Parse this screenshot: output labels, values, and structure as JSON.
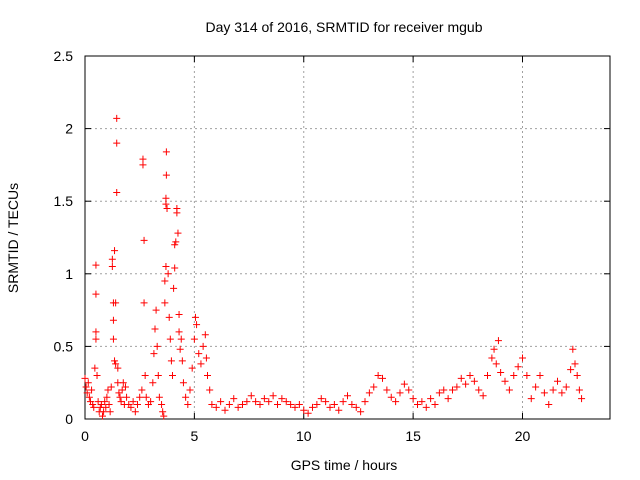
{
  "chart_data": {
    "type": "scatter",
    "title": "Day 314 of 2016, SRMTID for receiver mgub",
    "xlabel": "GPS time / hours",
    "ylabel": "SRMTID / TECUs",
    "xlim": [
      0,
      24
    ],
    "ylim": [
      0,
      2.5
    ],
    "x_ticks": [
      "0",
      "5",
      "10",
      "15",
      "20"
    ],
    "x_tick_values": [
      0,
      5,
      10,
      15,
      20
    ],
    "y_ticks": [
      "0",
      "0.5",
      "1",
      "1.5",
      "2",
      "2.5"
    ],
    "y_tick_values": [
      0,
      0.5,
      1,
      1.5,
      2,
      2.5
    ],
    "grid": true,
    "marker": "+",
    "colors": {
      "series": "#ff0000",
      "grid": "#a0a0a0",
      "axis": "#000000"
    },
    "series": [
      {
        "name": "SRMTID",
        "points": [
          [
            0.0,
            0.28
          ],
          [
            0.05,
            0.22
          ],
          [
            0.1,
            0.18
          ],
          [
            0.15,
            0.25
          ],
          [
            0.2,
            0.15
          ],
          [
            0.25,
            0.12
          ],
          [
            0.3,
            0.2
          ],
          [
            0.35,
            0.1
          ],
          [
            0.4,
            0.08
          ],
          [
            0.45,
            0.35
          ],
          [
            0.5,
            0.55
          ],
          [
            0.5,
            0.6
          ],
          [
            0.5,
            0.86
          ],
          [
            0.5,
            1.06
          ],
          [
            0.55,
            0.3
          ],
          [
            0.6,
            0.12
          ],
          [
            0.65,
            0.05
          ],
          [
            0.7,
            0.08
          ],
          [
            0.75,
            0.1
          ],
          [
            0.8,
            0.02
          ],
          [
            0.85,
            0.05
          ],
          [
            0.9,
            0.12
          ],
          [
            0.95,
            0.08
          ],
          [
            1.0,
            0.15
          ],
          [
            1.05,
            0.2
          ],
          [
            1.1,
            0.1
          ],
          [
            1.15,
            0.05
          ],
          [
            1.2,
            0.22
          ],
          [
            1.25,
            1.05
          ],
          [
            1.25,
            1.1
          ],
          [
            1.3,
            0.8
          ],
          [
            1.3,
            0.68
          ],
          [
            1.3,
            0.55
          ],
          [
            1.35,
            0.4
          ],
          [
            1.35,
            1.16
          ],
          [
            1.4,
            0.8
          ],
          [
            1.4,
            0.38
          ],
          [
            1.45,
            2.07
          ],
          [
            1.45,
            1.9
          ],
          [
            1.45,
            1.56
          ],
          [
            1.5,
            0.35
          ],
          [
            1.5,
            0.25
          ],
          [
            1.55,
            0.18
          ],
          [
            1.6,
            0.15
          ],
          [
            1.65,
            0.12
          ],
          [
            1.7,
            0.2
          ],
          [
            1.75,
            0.25
          ],
          [
            1.8,
            0.1
          ],
          [
            1.85,
            0.22
          ],
          [
            1.9,
            0.15
          ],
          [
            2.0,
            0.1
          ],
          [
            2.1,
            0.08
          ],
          [
            2.2,
            0.12
          ],
          [
            2.3,
            0.05
          ],
          [
            2.4,
            0.1
          ],
          [
            2.5,
            0.15
          ],
          [
            2.6,
            0.2
          ],
          [
            2.65,
            1.79
          ],
          [
            2.65,
            1.75
          ],
          [
            2.7,
            1.23
          ],
          [
            2.7,
            0.8
          ],
          [
            2.75,
            0.3
          ],
          [
            2.8,
            0.15
          ],
          [
            2.9,
            0.1
          ],
          [
            3.0,
            0.12
          ],
          [
            3.1,
            0.25
          ],
          [
            3.15,
            0.45
          ],
          [
            3.2,
            0.62
          ],
          [
            3.25,
            0.75
          ],
          [
            3.3,
            0.5
          ],
          [
            3.35,
            0.3
          ],
          [
            3.4,
            0.15
          ],
          [
            3.5,
            0.1
          ],
          [
            3.55,
            0.05
          ],
          [
            3.6,
            0.02
          ],
          [
            3.65,
            0.8
          ],
          [
            3.65,
            0.95
          ],
          [
            3.7,
            1.05
          ],
          [
            3.7,
            1.48
          ],
          [
            3.7,
            1.52
          ],
          [
            3.72,
            1.68
          ],
          [
            3.72,
            1.84
          ],
          [
            3.75,
            1.45
          ],
          [
            3.8,
            1.0
          ],
          [
            3.85,
            0.7
          ],
          [
            3.9,
            0.55
          ],
          [
            3.95,
            0.4
          ],
          [
            4.0,
            0.3
          ],
          [
            4.05,
            0.9
          ],
          [
            4.1,
            1.2
          ],
          [
            4.1,
            1.04
          ],
          [
            4.15,
            1.22
          ],
          [
            4.2,
            1.45
          ],
          [
            4.2,
            1.42
          ],
          [
            4.25,
            1.28
          ],
          [
            4.3,
            0.72
          ],
          [
            4.3,
            0.6
          ],
          [
            4.35,
            0.48
          ],
          [
            4.4,
            0.55
          ],
          [
            4.45,
            0.4
          ],
          [
            4.5,
            0.25
          ],
          [
            4.6,
            0.15
          ],
          [
            4.7,
            0.1
          ],
          [
            4.8,
            0.2
          ],
          [
            4.9,
            0.35
          ],
          [
            5.0,
            0.55
          ],
          [
            5.05,
            0.7
          ],
          [
            5.1,
            0.65
          ],
          [
            5.2,
            0.45
          ],
          [
            5.3,
            0.38
          ],
          [
            5.4,
            0.5
          ],
          [
            5.5,
            0.58
          ],
          [
            5.55,
            0.42
          ],
          [
            5.6,
            0.3
          ],
          [
            5.7,
            0.2
          ],
          [
            5.8,
            0.1
          ],
          [
            6.0,
            0.08
          ],
          [
            6.2,
            0.12
          ],
          [
            6.4,
            0.06
          ],
          [
            6.6,
            0.1
          ],
          [
            6.8,
            0.14
          ],
          [
            7.0,
            0.08
          ],
          [
            7.2,
            0.1
          ],
          [
            7.4,
            0.12
          ],
          [
            7.6,
            0.16
          ],
          [
            7.8,
            0.12
          ],
          [
            8.0,
            0.1
          ],
          [
            8.2,
            0.14
          ],
          [
            8.4,
            0.12
          ],
          [
            8.6,
            0.16
          ],
          [
            8.8,
            0.1
          ],
          [
            9.0,
            0.14
          ],
          [
            9.2,
            0.12
          ],
          [
            9.4,
            0.1
          ],
          [
            9.6,
            0.08
          ],
          [
            9.8,
            0.1
          ],
          [
            10.0,
            0.06
          ],
          [
            10.2,
            0.04
          ],
          [
            10.4,
            0.08
          ],
          [
            10.6,
            0.1
          ],
          [
            10.8,
            0.14
          ],
          [
            11.0,
            0.12
          ],
          [
            11.2,
            0.08
          ],
          [
            11.4,
            0.1
          ],
          [
            11.6,
            0.06
          ],
          [
            11.8,
            0.12
          ],
          [
            12.0,
            0.16
          ],
          [
            12.2,
            0.1
          ],
          [
            12.4,
            0.08
          ],
          [
            12.6,
            0.05
          ],
          [
            12.8,
            0.12
          ],
          [
            13.0,
            0.18
          ],
          [
            13.2,
            0.22
          ],
          [
            13.4,
            0.3
          ],
          [
            13.6,
            0.28
          ],
          [
            13.8,
            0.2
          ],
          [
            14.0,
            0.15
          ],
          [
            14.2,
            0.12
          ],
          [
            14.4,
            0.18
          ],
          [
            14.6,
            0.24
          ],
          [
            14.8,
            0.2
          ],
          [
            15.0,
            0.14
          ],
          [
            15.2,
            0.1
          ],
          [
            15.4,
            0.12
          ],
          [
            15.6,
            0.08
          ],
          [
            15.8,
            0.14
          ],
          [
            16.0,
            0.1
          ],
          [
            16.2,
            0.18
          ],
          [
            16.4,
            0.2
          ],
          [
            16.6,
            0.14
          ],
          [
            16.8,
            0.2
          ],
          [
            17.0,
            0.22
          ],
          [
            17.2,
            0.28
          ],
          [
            17.4,
            0.24
          ],
          [
            17.6,
            0.3
          ],
          [
            17.8,
            0.26
          ],
          [
            18.0,
            0.2
          ],
          [
            18.2,
            0.16
          ],
          [
            18.4,
            0.3
          ],
          [
            18.6,
            0.42
          ],
          [
            18.7,
            0.48
          ],
          [
            18.8,
            0.38
          ],
          [
            18.9,
            0.54
          ],
          [
            19.0,
            0.32
          ],
          [
            19.2,
            0.26
          ],
          [
            19.4,
            0.2
          ],
          [
            19.6,
            0.3
          ],
          [
            19.8,
            0.36
          ],
          [
            20.0,
            0.42
          ],
          [
            20.2,
            0.3
          ],
          [
            20.4,
            0.14
          ],
          [
            20.6,
            0.22
          ],
          [
            20.8,
            0.3
          ],
          [
            21.0,
            0.18
          ],
          [
            21.2,
            0.1
          ],
          [
            21.4,
            0.2
          ],
          [
            21.6,
            0.26
          ],
          [
            21.8,
            0.18
          ],
          [
            22.0,
            0.22
          ],
          [
            22.2,
            0.34
          ],
          [
            22.3,
            0.48
          ],
          [
            22.4,
            0.38
          ],
          [
            22.5,
            0.3
          ],
          [
            22.6,
            0.2
          ],
          [
            22.7,
            0.14
          ]
        ]
      }
    ]
  }
}
